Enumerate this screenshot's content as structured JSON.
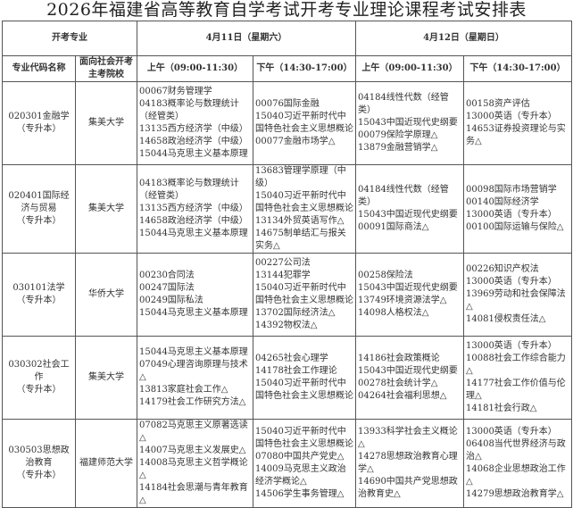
{
  "title": "2026年福建省高等教育自学考试开考专业理论课程考试安排表",
  "header": {
    "major_group": "开考专业",
    "day1": "4月11日（星期六）",
    "day2": "4月12日（星期日）",
    "col_major": "专业代码名称",
    "col_school": "面向社会开考主考院校",
    "am": "上午（09:00-11:30）",
    "pm": "下午（14:30-17:00）"
  },
  "rows": [
    {
      "major": "020301金融学",
      "level": "（专升本）",
      "school": "集美大学",
      "d1_am": [
        "00067财务管理学",
        "04183概率论与数理统计（经管类）",
        "13135西方经济学（中级）",
        "14658政治经济学（中级）",
        "15044马克思主义基本原理"
      ],
      "d1_pm": [
        "00076国际金融",
        "15040习近平新时代中国特色社会主义思想概论",
        "00077金融市场学△"
      ],
      "d2_am": [
        "04184线性代数（经管类）",
        "15043中国近现代史纲要",
        "00079保险学原理△",
        "13879金融营销学△"
      ],
      "d2_pm": [
        "00158资产评估",
        "13000英语（专升本）",
        "14653证券投资理论与实务△"
      ]
    },
    {
      "major": "020401国际经济与贸易",
      "level": "（专升本）",
      "school": "集美大学",
      "d1_am": [
        "04183概率论与数理统计（经管类）",
        "13135西方经济学（中级）",
        "14658政治经济学（中级）",
        "15044马克思主义基本原理"
      ],
      "d1_pm": [
        "13683管理学原理（中级）",
        "15040习近平新时代中国特色社会主义思想概论",
        "13134外贸英语写作△",
        "14675制单结汇与报关实务△"
      ],
      "d2_am": [
        "04184线性代数（经管类）",
        "15043中国近现代史纲要",
        "00091国际商法△"
      ],
      "d2_pm": [
        "00098国际市场营销学",
        "00140国际经济学",
        "13000英语（专升本）",
        "00100国际运输与保险△"
      ]
    },
    {
      "major": "030101法学",
      "level": "（专升本）",
      "school": "华侨大学",
      "d1_am": [
        "00230合同法",
        "00247国际法",
        "00249国际私法",
        "15044马克思主义基本原理"
      ],
      "d1_pm": [
        "00227公司法",
        "13144犯罪学",
        "15040习近平新时代中国特色社会主义思想概论",
        "13702国际经济法△",
        "14392物权法△"
      ],
      "d2_am": [
        "00258保险法",
        "15043中国近现代史纲要",
        "13749环境资源法学△",
        "14098人格权法△"
      ],
      "d2_pm": [
        "00226知识产权法",
        "13000英语（专升本）",
        "13969劳动和社会保障法△",
        "14081侵权责任法△"
      ]
    },
    {
      "major": "030302社会工作",
      "level": "（专升本）",
      "school": "集美大学",
      "d1_am": [
        "15044马克思主义基本原理",
        "07049心理咨询原理与技术△",
        "13813家庭社会工作△",
        "14179社会工作研究方法△"
      ],
      "d1_pm": [
        "04265社会心理学",
        "14178社会工作理论",
        "15040习近平新时代中国特色社会主义思想概论"
      ],
      "d2_am": [
        "14186社会政策概论",
        "15043中国近现代史纲要",
        "00278社会统计学△",
        "04264社会福利思想△"
      ],
      "d2_pm": [
        "13000英语（专升本）",
        "10088社会工作综合能力△",
        "14177社会工作价值与伦理△",
        "14181社会行政△"
      ]
    },
    {
      "major": "030503思想政治教育",
      "level": "（专升本）",
      "school": "福建师范大学",
      "d1_am": [
        "07082马克思主义原著选读△",
        "14007马克思主义发展史△",
        "14008马克思主义哲学概论△",
        "14184社会思潮与青年教育△"
      ],
      "d1_pm": [
        "15040习近平新时代中国特色社会主义思想概论",
        "07080中国共产党史△",
        "14009马克思主义政治经济学概论△",
        "14506学生事务管理△"
      ],
      "d2_am": [
        "13933科学社会主义概论△",
        "14278思想政治教育心理学△",
        "14690中国共产党思想政治教育史△"
      ],
      "d2_pm": [
        "13000英语（专升本）",
        "06408当代世界经济与政治△",
        "14068企业思想政治工作△",
        "14279思想政治教育学△"
      ]
    }
  ]
}
